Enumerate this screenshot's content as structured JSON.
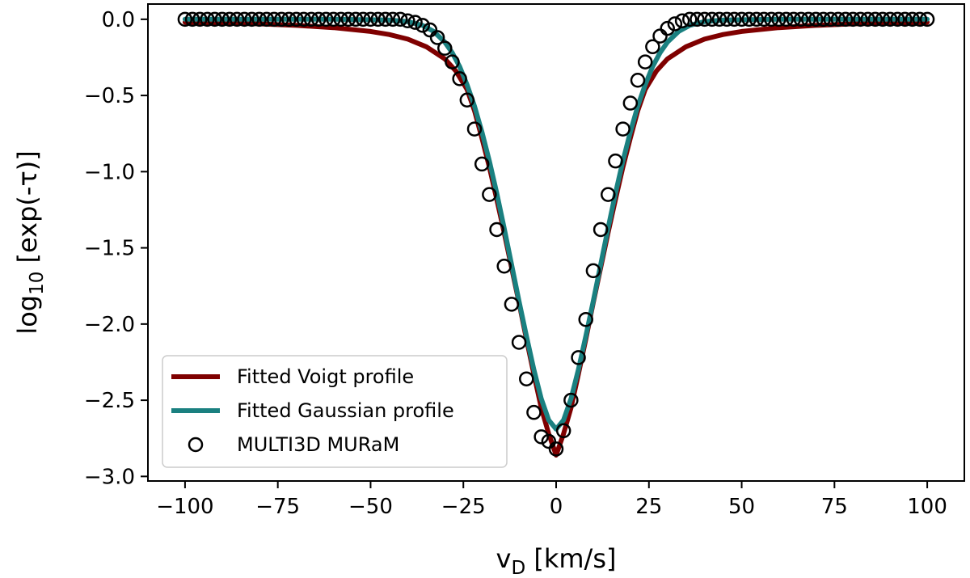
{
  "chart_data": {
    "type": "line",
    "title": "",
    "xlabel": "v_D [km/s]",
    "xlabel_main": "v",
    "xlabel_sub": "D",
    "xlabel_rest": " [km/s]",
    "ylabel": "log10 [exp(-τ)]",
    "ylabel_main": "log",
    "ylabel_sub": "10",
    "ylabel_rest": " [exp(-τ)]",
    "xlim": [
      -110,
      110
    ],
    "ylim": [
      -3.03,
      0.1
    ],
    "xticks": [
      -100,
      -75,
      -50,
      -25,
      0,
      25,
      50,
      75,
      100
    ],
    "xtick_labels": [
      "−100",
      "−75",
      "−50",
      "−25",
      "0",
      "25",
      "50",
      "75",
      "100"
    ],
    "yticks": [
      0.0,
      -0.5,
      -1.0,
      -1.5,
      -2.0,
      -2.5,
      -3.0
    ],
    "ytick_labels": [
      "0.0",
      "−0.5",
      "−1.0",
      "−1.5",
      "−2.0",
      "−2.5",
      "−3.0"
    ],
    "grid": false,
    "legend_position": "lower-left",
    "series": [
      {
        "name": "Fitted Voigt profile",
        "kind": "line",
        "color": "#7f0000",
        "x": [
          -100,
          -90,
          -80,
          -70,
          -60,
          -50,
          -45,
          -40,
          -35,
          -30,
          -27,
          -24,
          -22,
          -20,
          -18,
          -16,
          -14,
          -12,
          -10,
          -8,
          -6,
          -4,
          -2,
          0,
          2,
          4,
          6,
          8,
          10,
          12,
          14,
          16,
          18,
          20,
          22,
          24,
          27,
          30,
          35,
          40,
          45,
          50,
          60,
          70,
          80,
          90,
          100
        ],
        "y": [
          -0.02,
          -0.025,
          -0.03,
          -0.04,
          -0.055,
          -0.08,
          -0.1,
          -0.13,
          -0.18,
          -0.26,
          -0.34,
          -0.46,
          -0.6,
          -0.78,
          -0.97,
          -1.18,
          -1.4,
          -1.63,
          -1.86,
          -2.1,
          -2.33,
          -2.55,
          -2.72,
          -2.86,
          -2.72,
          -2.55,
          -2.33,
          -2.1,
          -1.86,
          -1.63,
          -1.4,
          -1.18,
          -0.97,
          -0.78,
          -0.6,
          -0.46,
          -0.34,
          -0.26,
          -0.18,
          -0.13,
          -0.1,
          -0.08,
          -0.055,
          -0.04,
          -0.03,
          -0.025,
          -0.02
        ]
      },
      {
        "name": "Fitted Gaussian profile",
        "kind": "line",
        "color": "#1a8080",
        "x": [
          -100,
          -60,
          -45,
          -40,
          -36,
          -33,
          -30,
          -28,
          -26,
          -24,
          -22,
          -20,
          -18,
          -16,
          -14,
          -12,
          -10,
          -8,
          -6,
          -4,
          -2,
          0,
          2,
          4,
          6,
          8,
          10,
          12,
          14,
          16,
          18,
          20,
          22,
          24,
          26,
          28,
          30,
          33,
          36,
          40,
          45,
          60,
          100
        ],
        "y": [
          0.0,
          0.0,
          -0.005,
          -0.015,
          -0.04,
          -0.08,
          -0.15,
          -0.22,
          -0.31,
          -0.43,
          -0.57,
          -0.74,
          -0.93,
          -1.14,
          -1.37,
          -1.61,
          -1.85,
          -2.08,
          -2.3,
          -2.49,
          -2.63,
          -2.69,
          -2.63,
          -2.49,
          -2.3,
          -2.08,
          -1.85,
          -1.61,
          -1.37,
          -1.14,
          -0.93,
          -0.74,
          -0.57,
          -0.43,
          -0.31,
          -0.22,
          -0.15,
          -0.08,
          -0.04,
          -0.015,
          -0.005,
          0.0,
          0.0
        ]
      },
      {
        "name": "MULTI3D MURaM",
        "kind": "scatter",
        "color": "#000000",
        "x": [
          -100,
          -98,
          -96,
          -94,
          -92,
          -90,
          -88,
          -86,
          -84,
          -82,
          -80,
          -78,
          -76,
          -74,
          -72,
          -70,
          -68,
          -66,
          -64,
          -62,
          -60,
          -58,
          -56,
          -54,
          -52,
          -50,
          -48,
          -46,
          -44,
          -42,
          -40,
          -38,
          -36,
          -34,
          -32,
          -30,
          -28,
          -26,
          -24,
          -22,
          -20,
          -18,
          -16,
          -14,
          -12,
          -10,
          -8,
          -6,
          -4,
          -2,
          0,
          2,
          4,
          6,
          8,
          10,
          12,
          14,
          16,
          18,
          20,
          22,
          24,
          26,
          28,
          30,
          32,
          34,
          36,
          38,
          40,
          42,
          44,
          46,
          48,
          50,
          52,
          54,
          56,
          58,
          60,
          62,
          64,
          66,
          68,
          70,
          72,
          74,
          76,
          78,
          80,
          82,
          84,
          86,
          88,
          90,
          92,
          94,
          96,
          98,
          100
        ],
        "y": [
          0.0,
          0.0,
          0.0,
          0.0,
          0.0,
          0.0,
          0.0,
          0.0,
          0.0,
          0.0,
          0.0,
          0.0,
          0.0,
          0.0,
          0.0,
          0.0,
          0.0,
          0.0,
          0.0,
          0.0,
          0.0,
          0.0,
          0.0,
          0.0,
          0.0,
          0.0,
          0.0,
          0.0,
          0.0,
          0.0,
          -0.01,
          -0.02,
          -0.04,
          -0.07,
          -0.12,
          -0.19,
          -0.28,
          -0.39,
          -0.53,
          -0.72,
          -0.95,
          -1.15,
          -1.38,
          -1.62,
          -1.87,
          -2.12,
          -2.36,
          -2.58,
          -2.74,
          -2.77,
          -2.82,
          -2.7,
          -2.5,
          -2.22,
          -1.97,
          -1.65,
          -1.38,
          -1.15,
          -0.93,
          -0.72,
          -0.55,
          -0.4,
          -0.28,
          -0.18,
          -0.11,
          -0.06,
          -0.03,
          -0.01,
          0.0,
          0.0,
          0.0,
          0.0,
          0.0,
          0.0,
          0.0,
          0.0,
          0.0,
          0.0,
          0.0,
          0.0,
          0.0,
          0.0,
          0.0,
          0.0,
          0.0,
          0.0,
          0.0,
          0.0,
          0.0,
          0.0,
          0.0,
          0.0,
          0.0,
          0.0,
          0.0,
          0.0,
          0.0,
          0.0,
          0.0,
          0.0,
          0.0
        ]
      }
    ]
  }
}
